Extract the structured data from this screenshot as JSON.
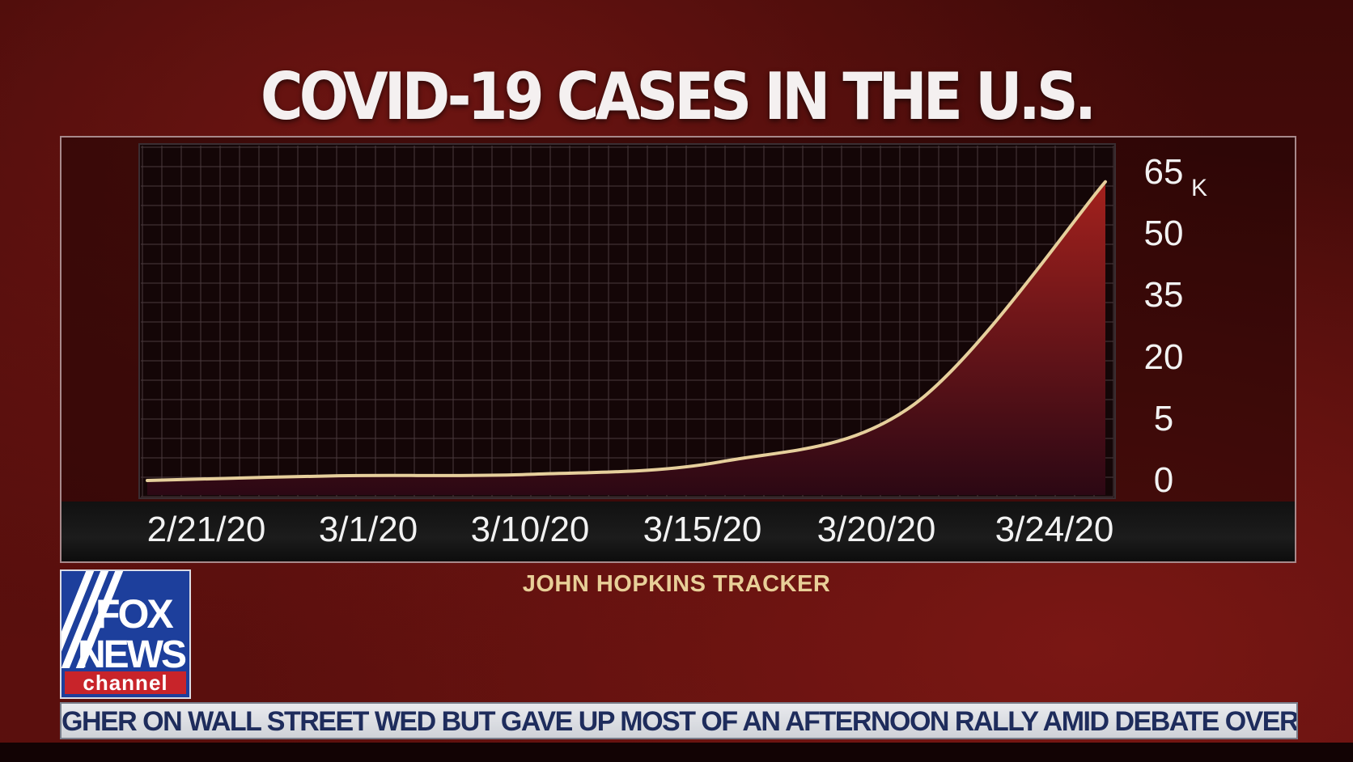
{
  "header": {
    "title": "COVID-19 CASES IN THE U.S."
  },
  "chart_data": {
    "type": "area",
    "title": "COVID-19 CASES IN THE U.S.",
    "x": [
      "2/21/20",
      "3/1/20",
      "3/10/20",
      "3/15/20",
      "3/20/20",
      "3/24/20"
    ],
    "x_ticks": [
      "2/21/20",
      "3/1/20",
      "3/10/20",
      "3/15/20",
      "3/20/20",
      "3/24/20"
    ],
    "y_ticks": [
      "0",
      "5",
      "20",
      "35",
      "50",
      "65"
    ],
    "y_unit": "K",
    "ylim": [
      0,
      65
    ],
    "series": [
      {
        "values": [
          0,
          1,
          1.3,
          4,
          16,
          63
        ]
      }
    ],
    "grid": true,
    "colors": {
      "line": "#e6cf9c",
      "fill_top": "#9a1e1c",
      "fill_bottom": "#2a0712",
      "grid": "#4a3a3e"
    }
  },
  "source": "JOHN HOPKINS TRACKER",
  "logo": {
    "line1": "FOX",
    "line2": "NEWS",
    "line3": "channel"
  },
  "ticker": {
    "text": "GHER ON WALL STREET WED BUT GAVE UP MOST OF AN AFTERNOON RALLY AMID DEBATE OVER SENATE C"
  }
}
